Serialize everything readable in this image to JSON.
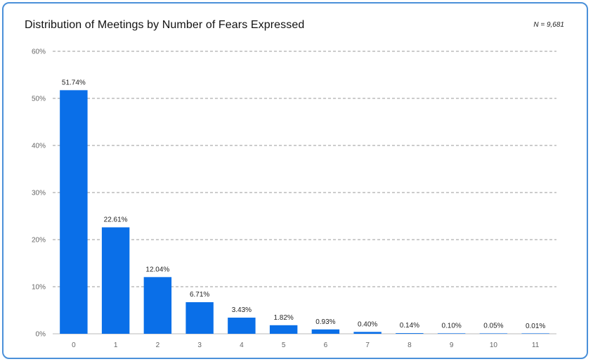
{
  "chart_data": {
    "type": "bar",
    "title": "Distribution of Meetings by Number of Fears Expressed",
    "annotation": "N = 9,681",
    "xlabel": "",
    "ylabel": "",
    "categories": [
      "0",
      "1",
      "2",
      "3",
      "4",
      "5",
      "6",
      "7",
      "8",
      "9",
      "10",
      "11"
    ],
    "values": [
      51.74,
      22.61,
      12.04,
      6.71,
      3.43,
      1.82,
      0.93,
      0.4,
      0.14,
      0.1,
      0.05,
      0.01
    ],
    "value_labels": [
      "51.74%",
      "22.61%",
      "12.04%",
      "6.71%",
      "3.43%",
      "1.82%",
      "0.93%",
      "0.40%",
      "0.14%",
      "0.10%",
      "0.05%",
      "0.01%"
    ],
    "ylim": [
      0,
      60
    ],
    "yticks": [
      0,
      10,
      20,
      30,
      40,
      50,
      60
    ],
    "ytick_labels": [
      "0%",
      "10%",
      "20%",
      "30%",
      "40%",
      "50%",
      "60%"
    ],
    "grid": true,
    "legend": "none",
    "bar_color": "#0a6fe8",
    "grid_color": "#999999",
    "frame_color": "#4a90d9"
  }
}
